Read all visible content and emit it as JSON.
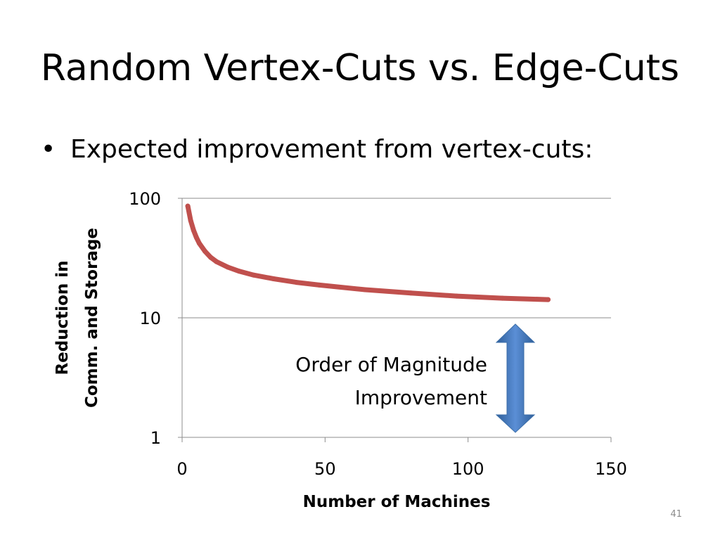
{
  "slide": {
    "title": "Random Vertex-Cuts vs. Edge-Cuts",
    "bullet_symbol": "•",
    "bullet_text": "Expected improvement from vertex-cuts:",
    "page_number": "41"
  },
  "chart_data": {
    "type": "line",
    "title": "",
    "xlabel": "Number of Machines",
    "ylabel_lines": [
      "Reduction in",
      "Comm. and Storage"
    ],
    "xlim": [
      0,
      150
    ],
    "ylim": [
      1,
      100
    ],
    "y_scale": "log",
    "x_ticks": [
      0,
      50,
      100,
      150
    ],
    "x_tick_labels": [
      "0",
      "50",
      "100",
      "150"
    ],
    "y_ticks": [
      1,
      10,
      100
    ],
    "y_tick_labels": [
      "1",
      "10",
      "100"
    ],
    "grid": "horizontal",
    "legend": "none",
    "series": [
      {
        "color": "#c0504d",
        "x": [
          2,
          3,
          4,
          5,
          6,
          8,
          10,
          12,
          16,
          20,
          25,
          32,
          40,
          48,
          64,
          80,
          96,
          112,
          128
        ],
        "y": [
          86,
          65,
          54,
          47,
          42,
          36,
          32,
          29.5,
          26.5,
          24.5,
          22.8,
          21.2,
          19.8,
          18.8,
          17.2,
          16.1,
          15.2,
          14.6,
          14.2
        ]
      }
    ],
    "annotation": {
      "lines": [
        "Order of Magnitude",
        "Improvement"
      ],
      "arrow_color": "#4f81bd",
      "arrow_direction": "double-vertical"
    }
  }
}
